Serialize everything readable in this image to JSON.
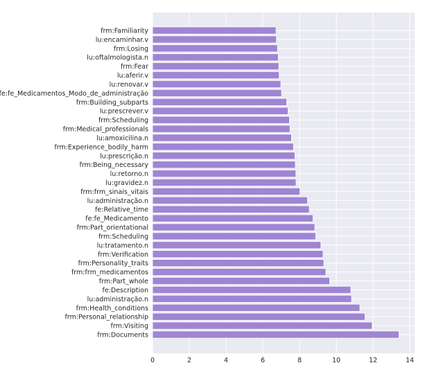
{
  "chart_data": {
    "type": "bar",
    "orientation": "horizontal",
    "title": "",
    "xlabel": "",
    "ylabel": "",
    "xlim": [
      0,
      14
    ],
    "xticks": [
      0,
      2,
      4,
      6,
      8,
      10,
      12,
      14
    ],
    "grid": true,
    "bar_color": "#9f85d3",
    "background_color": "#eaeaf2",
    "categories": [
      "frm:Familiarity",
      "lu:encaminhar.v",
      "frm:Losing",
      "lu:oftalmologista.n",
      "frm:Fear",
      "lu:aferir.v",
      "lu:renovar.v",
      "fe:fe_Medicamentos_Modo_de_administração",
      "frm:Building_subparts",
      "lu:prescrever.v",
      "frm:Scheduling",
      "frm:Medical_professionals",
      "lu:amoxicilina.n",
      "frm:Experience_bodily_harm",
      "lu:prescrição.n",
      "frm:Being_necessary",
      "lu:retorno.n",
      "lu:gravidez.n",
      "frm:frm_sinais_vitais",
      "lu:administração.n",
      "fe:Relative_time",
      "fe:fe_Medicamento",
      "frm:Part_orientational",
      "frm:Scheduling",
      "lu:tratamento.n",
      "frm:Verification",
      "frm:Personality_traits",
      "frm:frm_medicamentos",
      "frm:Part_whole",
      "fe:Description",
      "lu:administração.n",
      "frm:Health_conditions",
      "frm:Personal_relationship",
      "frm:Visiting",
      "frm:Documents"
    ],
    "values": [
      6.72,
      6.74,
      6.8,
      6.84,
      6.87,
      6.89,
      6.98,
      7.02,
      7.3,
      7.37,
      7.45,
      7.48,
      7.56,
      7.67,
      7.75,
      7.77,
      7.8,
      7.81,
      8.02,
      8.43,
      8.53,
      8.73,
      8.83,
      8.88,
      9.16,
      9.28,
      9.32,
      9.43,
      9.64,
      10.79,
      10.83,
      11.28,
      11.56,
      11.95,
      13.41
    ]
  }
}
